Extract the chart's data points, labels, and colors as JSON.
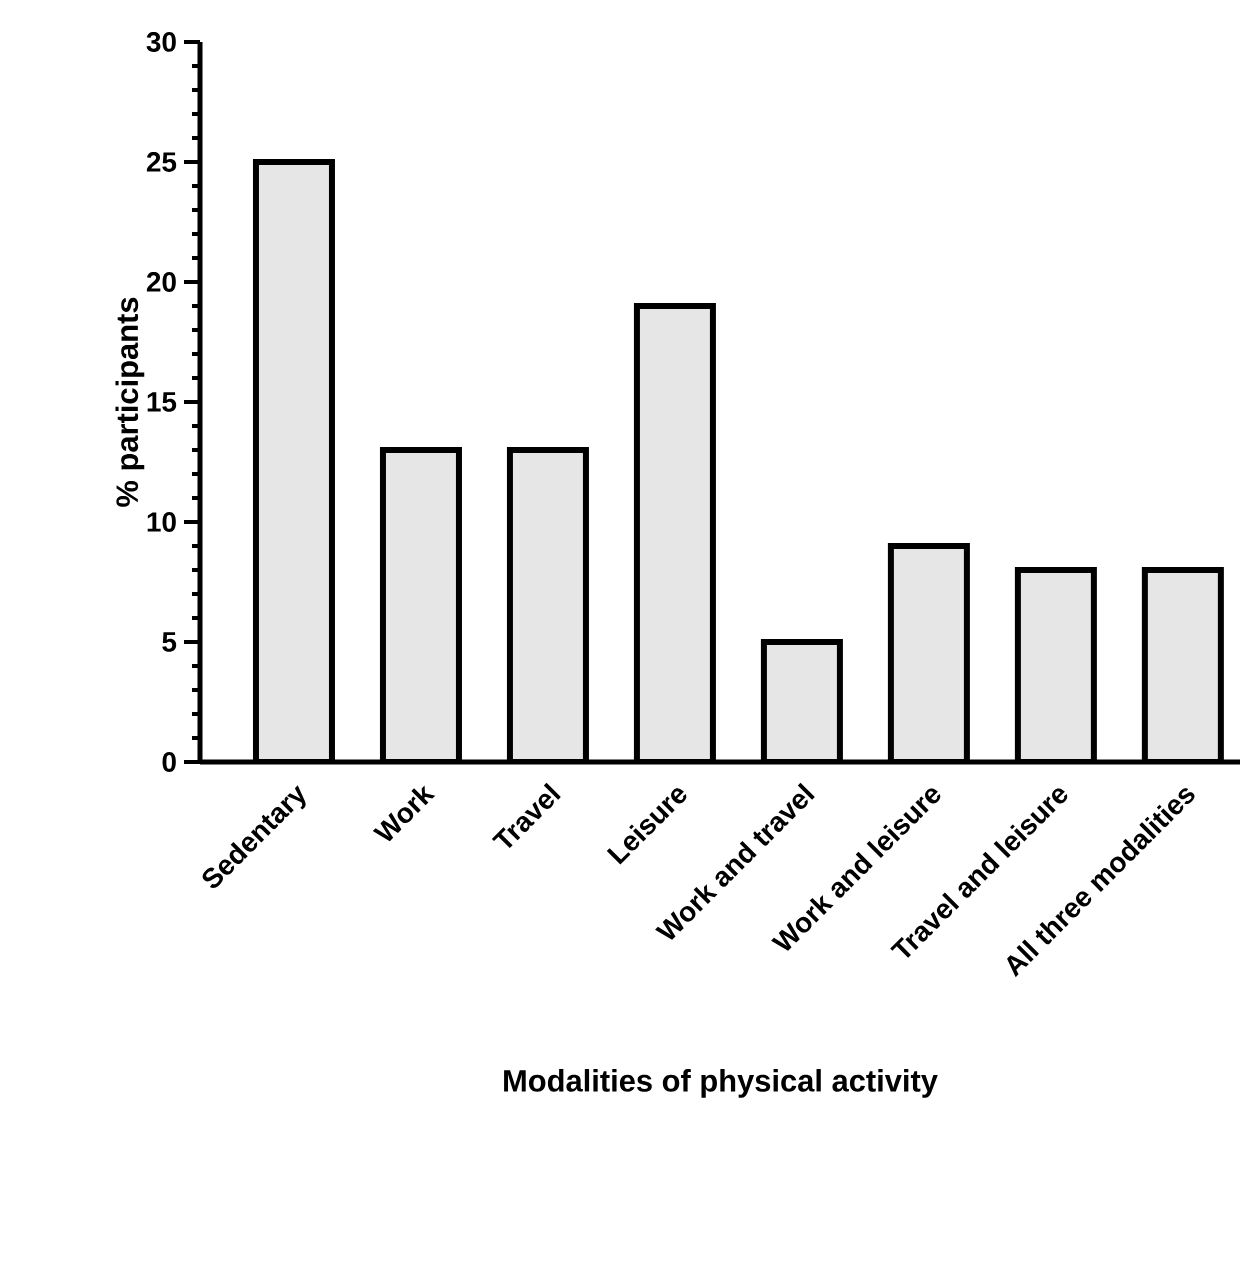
{
  "chart_data": {
    "type": "bar",
    "xlabel": "Modalities of physical activity",
    "ylabel": "% participants",
    "categories": [
      "Sedentary",
      "Work",
      "Travel",
      "Leisure",
      "Work and travel",
      "Work and leisure",
      "Travel and leisure",
      "All three modalities"
    ],
    "values": [
      25,
      13,
      13,
      19,
      5,
      9,
      8,
      8
    ],
    "color": "#e6e6e6",
    "ylim": [
      0,
      30
    ],
    "yticks": [
      0,
      5,
      10,
      15,
      20,
      25,
      30
    ]
  }
}
